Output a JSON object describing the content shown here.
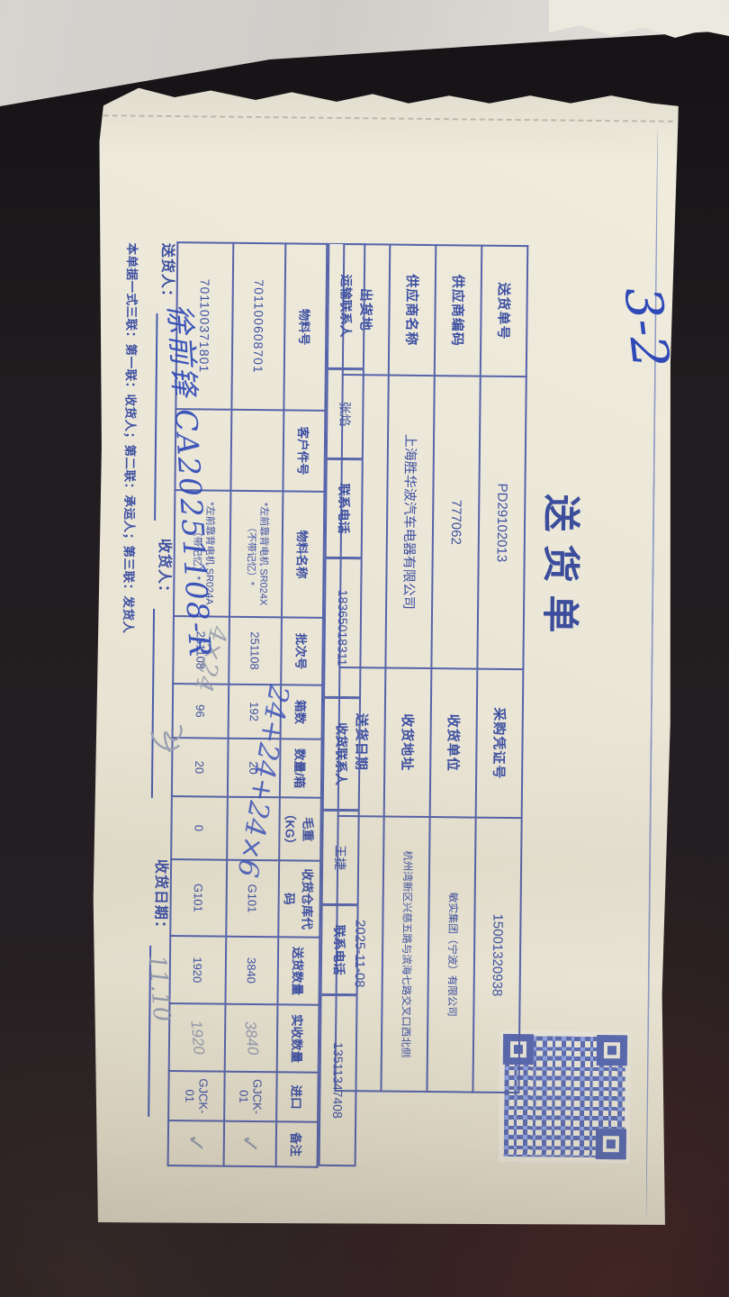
{
  "document": {
    "title": "送货单",
    "page_mark": "3-2",
    "qr_icon": "qr-code",
    "info": {
      "rows": [
        {
          "l1": "送货单号",
          "v1": "PD29102013",
          "l2": "采购凭证号",
          "v2": "15001320938"
        },
        {
          "l1": "供应商编码",
          "v1": "777062",
          "l2": "收货单位",
          "v2": "敏实集团（宁波）有限公司"
        },
        {
          "l1": "供应商名称",
          "v1": "上海胜华波汽车电器有限公司",
          "l2": "收货地址",
          "v2": "杭州湾新区兴慈五路与滨海七路交叉口西北侧"
        },
        {
          "l1": "出货地",
          "v1": "",
          "l2": "送货日期",
          "v2": "2025-11-08"
        }
      ]
    },
    "contacts": [
      {
        "label": "运输联系人",
        "value": "张焰"
      },
      {
        "label": "联系电话",
        "value": "18365018311"
      },
      {
        "label": "收货联系人",
        "value": "王捷"
      },
      {
        "label": "联系电话",
        "value": "13511347408"
      }
    ],
    "table": {
      "headers": [
        "物料号",
        "客户件号",
        "物料名称",
        "批次号",
        "箱数",
        "数量/箱",
        "毛重（KG）",
        "收货仓库代码",
        "送货数量",
        "实收数量",
        "进口",
        "备注"
      ],
      "rows": [
        [
          "701100608701",
          "",
          "*左前靠背电机 SR024X（不带记忆）*",
          "251108",
          "192",
          "20",
          "",
          "G101",
          "3840",
          "3840",
          "GJCK-01",
          "✓"
        ],
        [
          "701100371801",
          "",
          "*左前靠背电机 SR024A（带记忆）*",
          "251108",
          "96",
          "20",
          "0",
          "G101",
          "1920",
          "1920",
          "GJCK-01",
          "✓"
        ]
      ]
    },
    "handwritten": {
      "calc_row1": "24+24+24×6",
      "calc_row2": "4×24",
      "deliverer_signature": "徐前锋 CA20251108-R",
      "receive_date_value": "11.10"
    },
    "footer": {
      "deliverer_label": "送货人：",
      "receiver_label": "收货人：",
      "receive_date_label": "收货日期：",
      "copies_note": "本单据一式三联：第一联：收货人；第二联：承运人；第三联：发货人"
    }
  }
}
